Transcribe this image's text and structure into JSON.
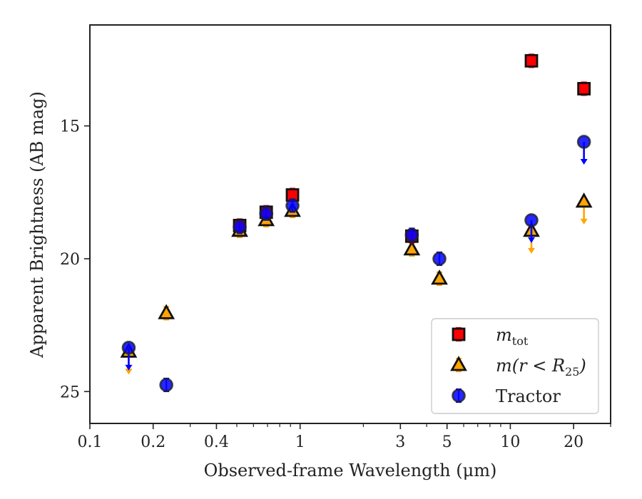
{
  "chart_data": {
    "type": "scatter",
    "xlabel": "Observed-frame Wavelength (μm)",
    "ylabel": "Apparent Brightness (AB mag)",
    "x_scale": "log",
    "xlim": [
      0.1,
      30
    ],
    "ylim": [
      26.2,
      11.2
    ],
    "y_inverted": true,
    "x_ticks": [
      {
        "value": 0.1,
        "label": "0.1"
      },
      {
        "value": 0.2,
        "label": "0.2"
      },
      {
        "value": 0.4,
        "label": "0.4"
      },
      {
        "value": 1,
        "label": "1"
      },
      {
        "value": 3,
        "label": "3"
      },
      {
        "value": 5,
        "label": "5"
      },
      {
        "value": 10,
        "label": "10"
      },
      {
        "value": 20,
        "label": "20"
      }
    ],
    "y_ticks": [
      {
        "value": 15,
        "label": "15"
      },
      {
        "value": 20,
        "label": "20"
      },
      {
        "value": 25,
        "label": "25"
      }
    ],
    "legend_position": "bottom-right",
    "series": [
      {
        "key": "mtot",
        "marker": "square",
        "color": "#ff0000",
        "errcolor": "#ff0000",
        "points": [
          {
            "x": 0.516,
            "y": 18.75
          },
          {
            "x": 0.69,
            "y": 18.25
          },
          {
            "x": 0.92,
            "y": 17.6
          },
          {
            "x": 3.4,
            "y": 19.15
          },
          {
            "x": 12.6,
            "y": 12.55
          },
          {
            "x": 22.4,
            "y": 13.6
          }
        ]
      },
      {
        "key": "mr25",
        "marker": "triangle",
        "color": "#ffa500",
        "errcolor": "#ffa500",
        "points": [
          {
            "x": 0.153,
            "y": 23.5,
            "upper_limit": true
          },
          {
            "x": 0.231,
            "y": 22.05
          },
          {
            "x": 0.516,
            "y": 18.95
          },
          {
            "x": 0.69,
            "y": 18.55
          },
          {
            "x": 0.92,
            "y": 18.2
          },
          {
            "x": 3.4,
            "y": 19.65
          },
          {
            "x": 4.6,
            "y": 20.75
          },
          {
            "x": 12.6,
            "y": 18.95,
            "upper_limit": true
          },
          {
            "x": 22.4,
            "y": 17.85,
            "upper_limit": true
          }
        ]
      },
      {
        "key": "tractor",
        "marker": "circle",
        "color": "#0000ff",
        "errcolor": "#0000ff",
        "points": [
          {
            "x": 0.153,
            "y": 23.35,
            "upper_limit": true
          },
          {
            "x": 0.231,
            "y": 24.75
          },
          {
            "x": 0.516,
            "y": 18.8
          },
          {
            "x": 0.69,
            "y": 18.3
          },
          {
            "x": 0.92,
            "y": 18.0
          },
          {
            "x": 3.4,
            "y": 19.1
          },
          {
            "x": 4.6,
            "y": 20.0
          },
          {
            "x": 12.6,
            "y": 18.55,
            "upper_limit": true
          },
          {
            "x": 22.4,
            "y": 15.6,
            "upper_limit": true
          }
        ]
      }
    ]
  },
  "legend": {
    "items": [
      {
        "key": "mtot",
        "main": "m",
        "sub": "tot",
        "suffix": ""
      },
      {
        "key": "mr25",
        "main": "m(r < R",
        "sub": "25",
        "suffix": ")"
      },
      {
        "key": "tractor",
        "main": "Tractor",
        "sub": "",
        "suffix": ""
      }
    ]
  }
}
